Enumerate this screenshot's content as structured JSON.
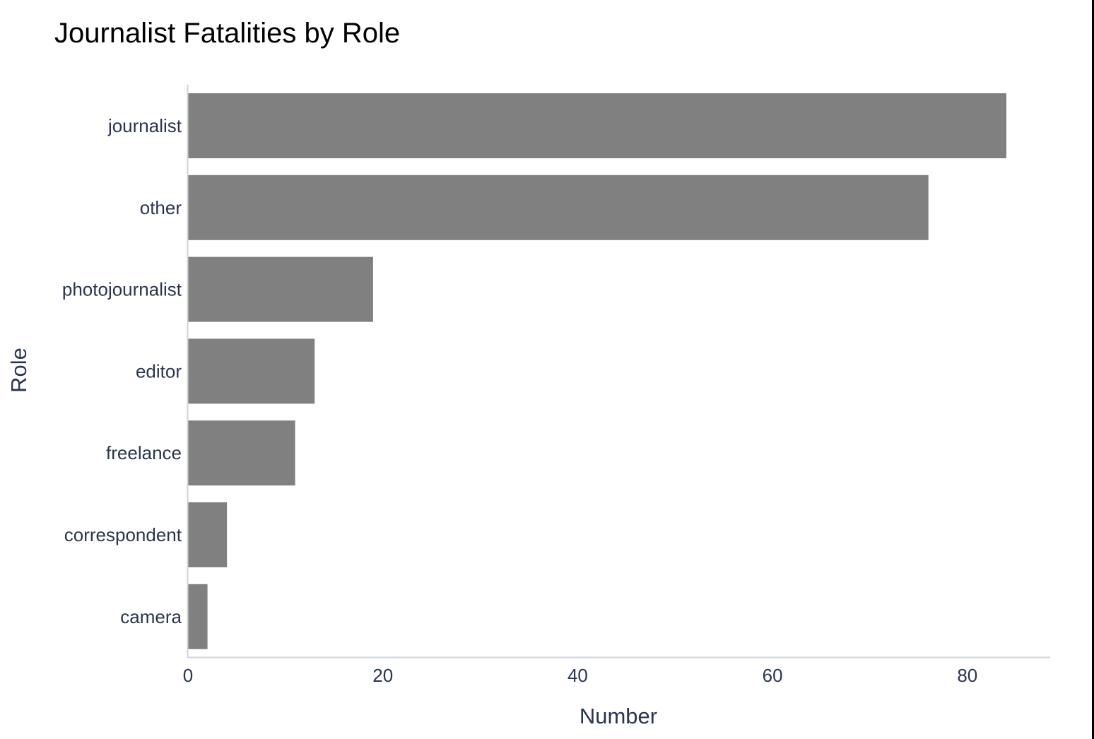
{
  "chart_data": {
    "type": "bar",
    "orientation": "horizontal",
    "title": "Journalist Fatalities by Role",
    "xlabel": "Number",
    "ylabel": "Role",
    "categories": [
      "journalist",
      "other",
      "photojournalist",
      "editor",
      "freelance",
      "correspondent",
      "camera"
    ],
    "values": [
      84,
      76,
      19,
      13,
      11,
      4,
      2
    ],
    "xlim": [
      0,
      88.5
    ],
    "x_ticks": [
      0,
      20,
      40,
      60,
      80
    ],
    "bar_color": "#808080",
    "grid": false,
    "legend": "none"
  }
}
